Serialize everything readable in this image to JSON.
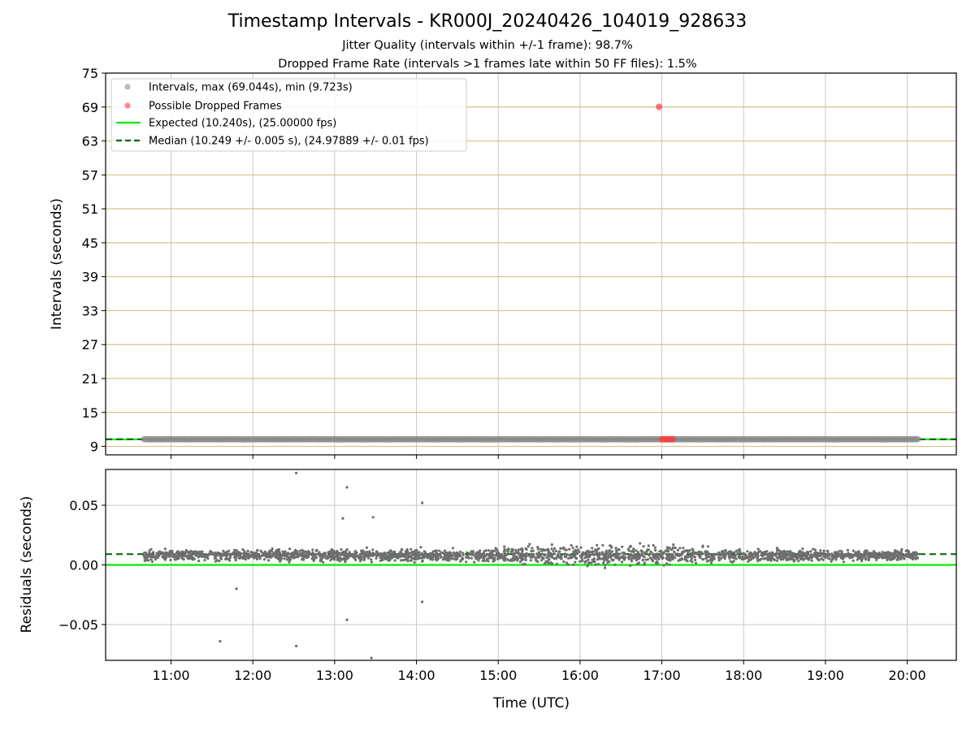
{
  "figure": {
    "title": "Timestamp Intervals - KR000J_20240426_104019_928633",
    "subtitle_1": "Jitter Quality (intervals within +/-1 frame): 98.7%",
    "subtitle_2": "Dropped Frame Rate (intervals >1 frames late within 50 FF files): 1.5%"
  },
  "colors": {
    "intervals": "#8c8c8c",
    "dropped": "#ff3b3b",
    "expected": "#00ee00",
    "median": "#006400",
    "hgrid": "#d2c38c",
    "vgrid": "#c8c8c8",
    "residual_points": "#6e6e6e"
  },
  "chart_data": [
    {
      "type": "scatter",
      "panel": "top",
      "ylabel": "Intervals (seconds)",
      "xlabel": "",
      "xlim_hours": [
        10.2,
        20.6
      ],
      "ylim": [
        7.5,
        75
      ],
      "y_ticks": [
        9,
        15,
        21,
        27,
        33,
        39,
        45,
        51,
        57,
        63,
        69,
        75
      ],
      "x_ticks": [
        "11:00",
        "12:00",
        "13:00",
        "14:00",
        "15:00",
        "16:00",
        "17:00",
        "18:00",
        "19:00",
        "20:00"
      ],
      "hgrid_at": [
        9,
        15,
        21,
        27,
        33,
        39,
        45,
        51,
        57,
        63,
        69,
        75
      ],
      "vgrid": true,
      "legend_placement": "upper-left",
      "legend": [
        "Intervals, max (69.044s), min (9.723s)",
        "Possible Dropped Frames",
        "Expected (10.240s), (25.00000 fps)",
        "Median (10.249 +/- 0.005 s), (24.97889 +/- 0.01 fps)"
      ],
      "series": [
        {
          "name": "Intervals, max (69.044s), min (9.723s)",
          "kind": "points",
          "x_range": [
            "10:40",
            "20:08"
          ],
          "y_typical": 10.25,
          "y_spread": 0.05
        },
        {
          "name": "Possible Dropped Frames",
          "kind": "points",
          "x": [
            "16:58",
            "17:00",
            "17:02",
            "17:04",
            "17:06",
            "17:08"
          ],
          "y": [
            69.044,
            10.26,
            10.27,
            10.25,
            10.28,
            10.26
          ]
        },
        {
          "name": "Expected (10.240s), (25.00000 fps)",
          "kind": "hline",
          "y": 10.24
        },
        {
          "name": "Median (10.249 +/- 0.005 s), (24.97889 +/- 0.01 fps)",
          "kind": "hline",
          "y": 10.249
        }
      ]
    },
    {
      "type": "scatter",
      "panel": "bottom",
      "ylabel": "Residuals (seconds)",
      "xlabel": "Time (UTC)",
      "xlim_hours": [
        10.2,
        20.6
      ],
      "ylim": [
        -0.08,
        0.08
      ],
      "y_ticks": [
        -0.05,
        0.0,
        0.05
      ],
      "y_tick_labels": [
        "−0.05",
        "0.00",
        "0.05"
      ],
      "x_ticks": [
        "11:00",
        "12:00",
        "13:00",
        "14:00",
        "15:00",
        "16:00",
        "17:00",
        "18:00",
        "19:00",
        "20:00"
      ],
      "grid": true,
      "series": [
        {
          "name": "",
          "kind": "points",
          "x_range": [
            "10:40",
            "20:08"
          ],
          "y_center": 0.008,
          "y_spread": 0.008,
          "outliers": [
            [
              11.6,
              -0.064
            ],
            [
              11.8,
              -0.02
            ],
            [
              12.53,
              0.077
            ],
            [
              12.53,
              -0.068
            ],
            [
              13.15,
              0.065
            ],
            [
              13.15,
              -0.046
            ],
            [
              13.45,
              -0.078
            ],
            [
              13.47,
              0.04
            ],
            [
              14.07,
              0.052
            ],
            [
              14.07,
              -0.031
            ],
            [
              13.1,
              0.039
            ]
          ]
        },
        {
          "name": "",
          "kind": "hline",
          "y": 0.0
        },
        {
          "name": "",
          "kind": "hline",
          "y": 0.009
        }
      ]
    }
  ]
}
